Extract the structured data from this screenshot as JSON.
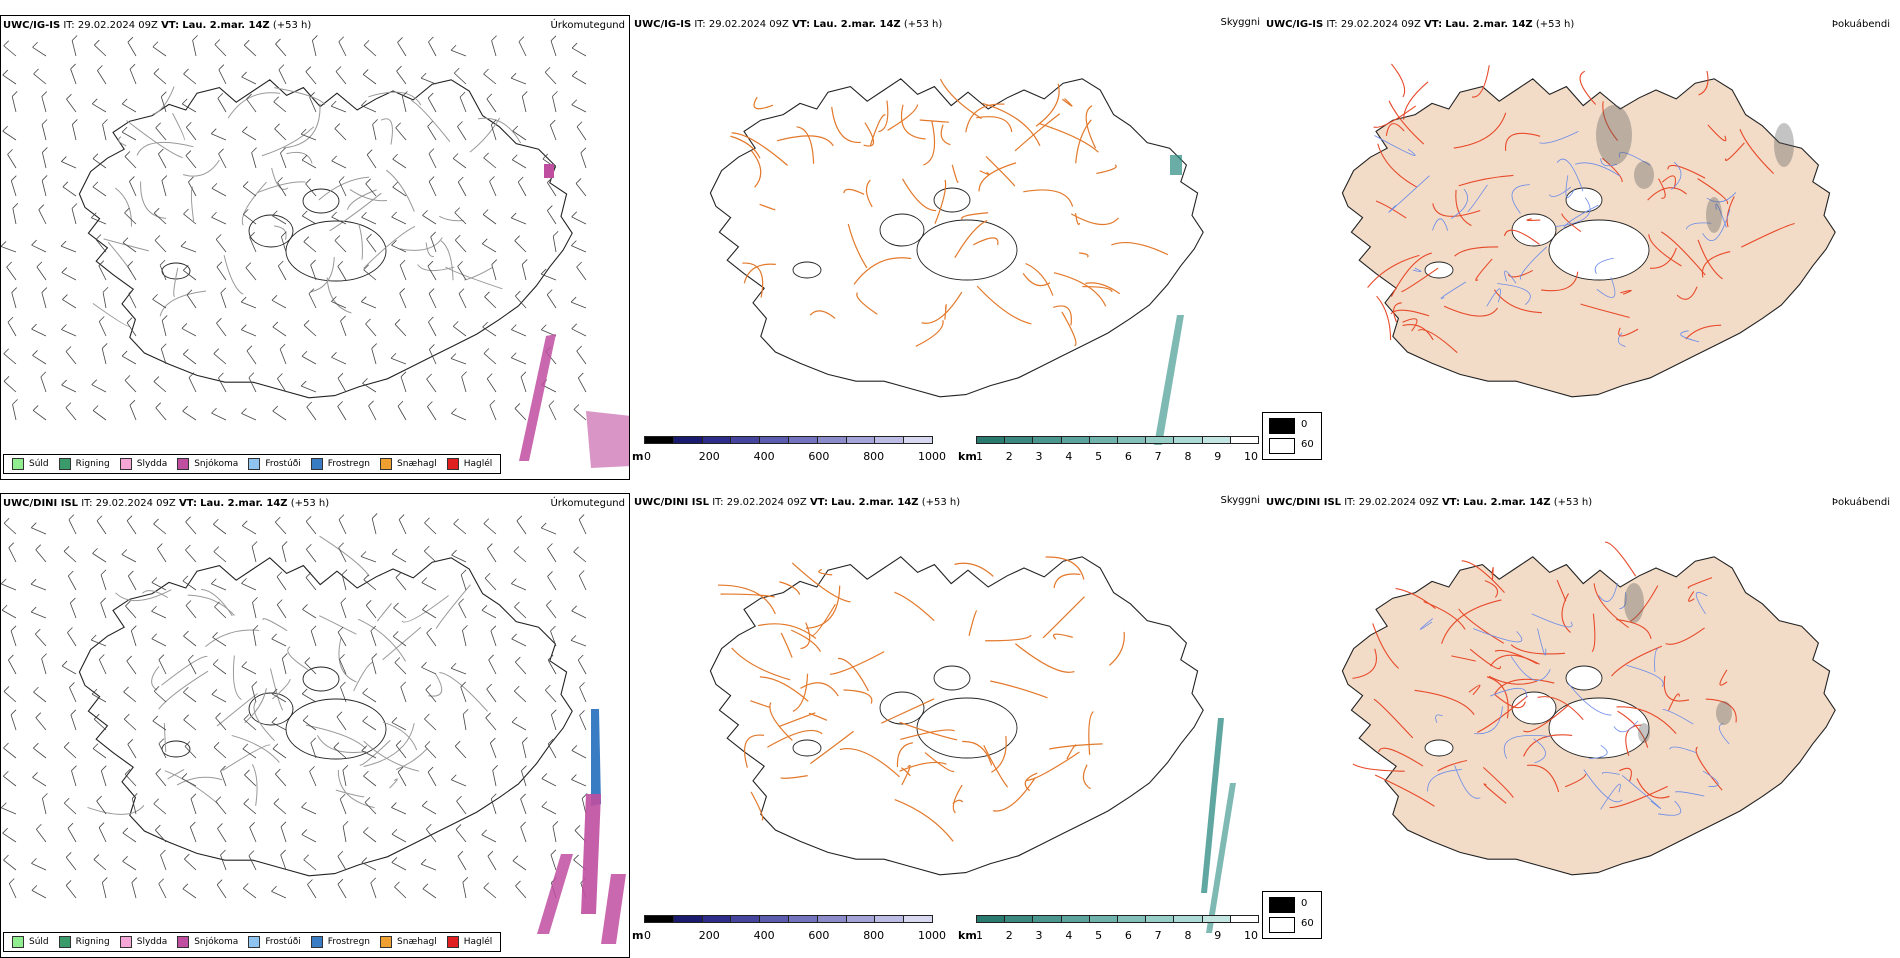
{
  "rows": [
    {
      "model": "UWC/IG-IS",
      "it_label": "IT:",
      "it": "29.02.2024 09Z",
      "vt_label": "VT:",
      "vt": "Lau. 2.mar. 14Z",
      "lead": "(+53 h)"
    },
    {
      "model": "UWC/DINI ISL",
      "it_label": "IT:",
      "it": "29.02.2024 09Z",
      "vt_label": "VT:",
      "vt": "Lau. 2.mar. 14Z",
      "lead": "(+53 h)"
    }
  ],
  "panel_titles": {
    "precip": "Úrkomutegund",
    "visibility": "Skyggni",
    "fog": "Þokuábendi"
  },
  "precip_legend": [
    {
      "label": "Súld",
      "color": "#90ee90"
    },
    {
      "label": "Rigning",
      "color": "#3a9a6a"
    },
    {
      "label": "Slydda",
      "color": "#f4a6d7"
    },
    {
      "label": "Snjókoma",
      "color": "#c04ea0"
    },
    {
      "label": "Frostúði",
      "color": "#8fc4f0"
    },
    {
      "label": "Frostregn",
      "color": "#3a7cc4"
    },
    {
      "label": "Snæhagl",
      "color": "#f0a030"
    },
    {
      "label": "Haglél",
      "color": "#e02020"
    }
  ],
  "elev_bar": {
    "unit": "m",
    "ticks": [
      "0",
      "200",
      "400",
      "600",
      "800",
      "1000"
    ],
    "colors": [
      "#000000",
      "#1a1a6e",
      "#2e2e8a",
      "#45459e",
      "#5c5cae",
      "#7474be",
      "#8c8cca",
      "#a4a4d8",
      "#bcbce4",
      "#d8d8f0"
    ]
  },
  "vis_bar": {
    "unit": "km",
    "ticks": [
      "1",
      "2",
      "3",
      "4",
      "5",
      "6",
      "7",
      "8",
      "9",
      "10"
    ],
    "colors": [
      "#2a7a70",
      "#3b8880",
      "#4c9690",
      "#5ea49e",
      "#70b2ac",
      "#84c0ba",
      "#98cec8",
      "#acdad6",
      "#c4e6e2",
      "#ffffff"
    ]
  },
  "fog_legend": {
    "dark": "0",
    "light": "60"
  },
  "colors": {
    "land_fill": "#f2dcc8",
    "roads": "#e3782a",
    "fog_roads": "#e84a2a",
    "rivers": "#6a8ae8",
    "snow": "#c04ea0",
    "freezing_rain": "#3a7cc4",
    "visibility_low": "#2a8a80"
  }
}
